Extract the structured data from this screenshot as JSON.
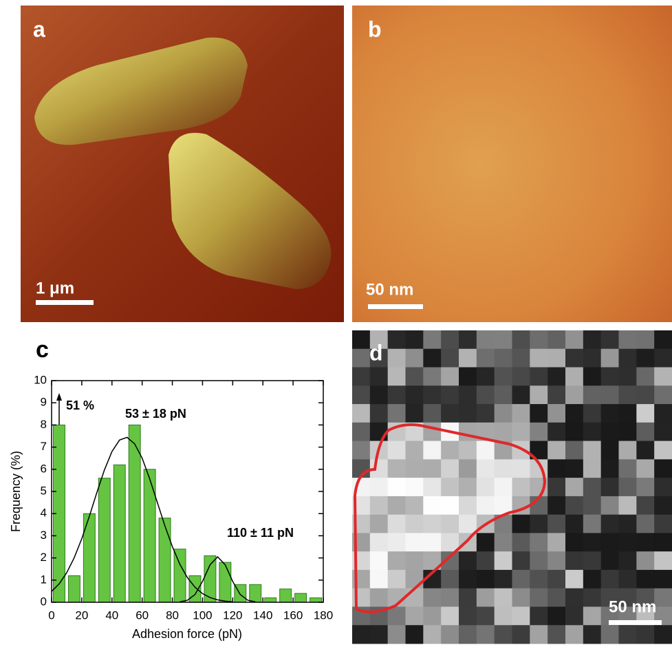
{
  "panels": {
    "a": {
      "label": "a",
      "scale_bar": "1 μm"
    },
    "b": {
      "label": "b",
      "scale_bar": "50 nm"
    },
    "d": {
      "label": "d",
      "scale_bar": "50 nm"
    }
  },
  "chart_data": {
    "type": "histogram",
    "label": "c",
    "xlabel": "Adhesion force (pN)",
    "ylabel": "Frequency (%)",
    "bins": [
      0,
      10,
      20,
      30,
      40,
      50,
      60,
      70,
      80,
      90,
      100,
      110,
      120,
      130,
      140,
      150,
      160,
      170,
      180
    ],
    "values": [
      8,
      1.2,
      4,
      5.6,
      6.2,
      8,
      6,
      3.8,
      2.4,
      1.2,
      2.1,
      1.8,
      0.8,
      0.8,
      0.2,
      0.6,
      0.4,
      0.2
    ],
    "color": "#66c443",
    "xlim": [
      0,
      180
    ],
    "ylim": [
      0,
      10
    ],
    "xticks": [
      0,
      20,
      40,
      60,
      80,
      100,
      120,
      140,
      160,
      180
    ],
    "yticks": [
      0,
      1,
      2,
      3,
      4,
      5,
      6,
      7,
      8,
      9,
      10
    ],
    "annotations": [
      "51 %",
      "53 ± 18 pN",
      "110 ± 11 pN"
    ],
    "fits": [
      {
        "color": "#000000",
        "x": [
          0,
          5,
          10,
          15,
          20,
          25,
          30,
          35,
          40,
          45,
          50,
          55,
          60,
          65,
          70,
          75,
          80,
          85,
          90,
          95,
          100,
          105,
          110,
          115,
          120
        ],
        "values": [
          0.49,
          0.83,
          1.33,
          2.01,
          2.87,
          3.88,
          4.95,
          5.97,
          6.8,
          7.32,
          7.44,
          7.15,
          6.5,
          5.57,
          4.52,
          3.46,
          2.51,
          1.71,
          1.11,
          0.68,
          0.39,
          0.21,
          0.11,
          0.05,
          0.02
        ]
      },
      {
        "color": "#000000",
        "x": [
          85,
          90,
          95,
          100,
          105,
          110,
          115,
          120,
          125,
          130,
          135
        ],
        "values": [
          0.02,
          0.09,
          0.35,
          0.94,
          1.69,
          2.05,
          1.69,
          0.94,
          0.35,
          0.09,
          0.02
        ]
      }
    ]
  }
}
